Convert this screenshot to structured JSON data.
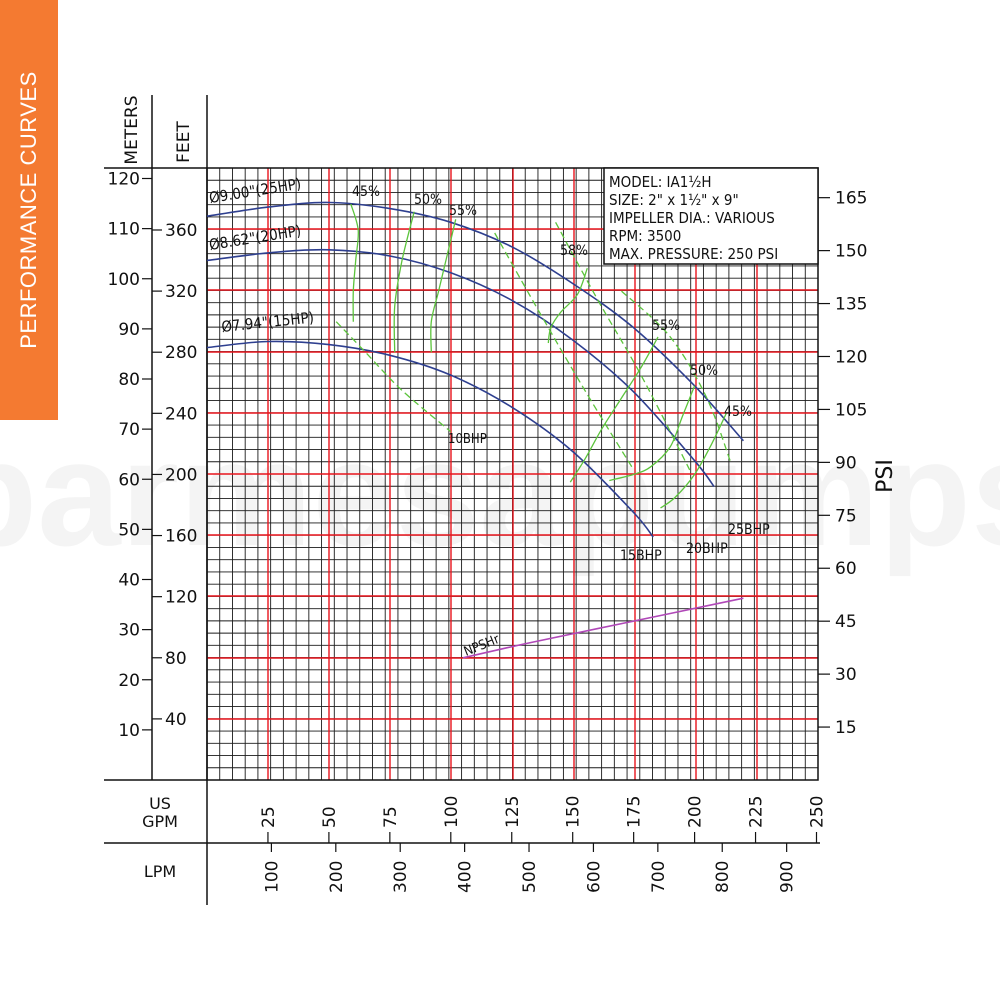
{
  "side_tab": {
    "label": "PERFORMANCE CURVES",
    "color": "#f47a31"
  },
  "colors": {
    "grid_major": "#e8141c",
    "grid_minor": "#1a1a1a",
    "head_curve": "#2e3f8f",
    "efficiency": "#5cc43c",
    "bhp": "#5cc43c",
    "npsh": "#b048b8"
  },
  "axes": {
    "meters_label": "METERS",
    "feet_label": "FEET",
    "psi_label": "PSI",
    "gpm_label_1": "US",
    "gpm_label_2": "GPM",
    "lpm_label": "LPM",
    "meters_ticks": [
      "10",
      "20",
      "30",
      "40",
      "50",
      "60",
      "70",
      "80",
      "90",
      "100",
      "110",
      "120"
    ],
    "feet_ticks": [
      "40",
      "80",
      "120",
      "160",
      "200",
      "240",
      "280",
      "320",
      "360"
    ],
    "psi_ticks": [
      "15",
      "30",
      "45",
      "60",
      "75",
      "90",
      "105",
      "120",
      "135",
      "150",
      "165"
    ],
    "gpm_ticks": [
      "25",
      "50",
      "75",
      "100",
      "125",
      "150",
      "175",
      "200",
      "225",
      "250"
    ],
    "lpm_ticks": [
      "100",
      "200",
      "300",
      "400",
      "500",
      "600",
      "700",
      "800",
      "900"
    ],
    "x_range_gpm": [
      0,
      250
    ],
    "y_range_meters": [
      0,
      120
    ]
  },
  "info_box": {
    "lines": [
      "MODEL: IA1½H",
      "SIZE: 2\" x 1½\" x 9\"",
      "IMPELLER DIA.: VARIOUS",
      "RPM: 3500",
      "MAX. PRESSURE: 250 PSI"
    ]
  },
  "watermark": "barmesapumps",
  "chart_data": {
    "type": "line",
    "xlabel": "US GPM",
    "ylabel": "FEET",
    "xlim": [
      0,
      250
    ],
    "ylim": [
      0,
      394
    ],
    "series": [
      {
        "name": "Ø9.00\"(25HP)",
        "kind": "head",
        "x": [
          0,
          25,
          50,
          75,
          100,
          125,
          150,
          175,
          200,
          220
        ],
        "y": [
          369,
          375,
          378,
          374,
          365,
          349,
          325,
          296,
          258,
          222
        ]
      },
      {
        "name": "Ø8.62\"(20HP)",
        "kind": "head",
        "x": [
          0,
          25,
          50,
          75,
          100,
          125,
          150,
          175,
          200,
          208
        ],
        "y": [
          340,
          345,
          347,
          343,
          332,
          314,
          288,
          254,
          209,
          192
        ]
      },
      {
        "name": "Ø7.94\"(15HP)",
        "kind": "head",
        "x": [
          0,
          25,
          50,
          75,
          100,
          125,
          150,
          175,
          183
        ],
        "y": [
          283,
          287,
          285,
          278,
          265,
          244,
          215,
          175,
          159
        ]
      },
      {
        "name": "45%",
        "kind": "efficiency",
        "x": [
          59,
          62,
          61,
          60,
          60
        ],
        "y": [
          377,
          360,
          340,
          320,
          300
        ]
      },
      {
        "name": "50%",
        "kind": "efficiency",
        "x": [
          85,
          80,
          77,
          77
        ],
        "y": [
          372,
          340,
          310,
          280
        ]
      },
      {
        "name": "55%",
        "kind": "efficiency",
        "x": [
          102,
          98,
          95,
          92,
          92
        ],
        "y": [
          367,
          340,
          320,
          300,
          280
        ]
      },
      {
        "name": "58%",
        "kind": "efficiency",
        "x": [
          156,
          152,
          145,
          141,
          140
        ],
        "y": [
          335,
          318,
          306,
          296,
          286
        ]
      },
      {
        "name": "55%",
        "kind": "efficiency",
        "x": [
          185,
          178,
          170,
          162,
          155,
          149
        ],
        "y": [
          290,
          270,
          250,
          230,
          210,
          195
        ]
      },
      {
        "name": "50%",
        "kind": "efficiency",
        "x": [
          200,
          195,
          190,
          182,
          175,
          165
        ],
        "y": [
          258,
          238,
          218,
          205,
          200,
          196
        ]
      },
      {
        "name": "45%",
        "kind": "efficiency",
        "x": [
          213,
          207,
          200,
          192,
          186
        ],
        "y": [
          240,
          220,
          200,
          185,
          178
        ]
      },
      {
        "name": "10BHP",
        "kind": "bhp",
        "x": [
          53,
          65,
          80,
          100
        ],
        "y": [
          300,
          280,
          255,
          228
        ]
      },
      {
        "name": "15BHP",
        "kind": "bhp",
        "x": [
          118,
          135,
          155,
          175
        ],
        "y": [
          358,
          310,
          255,
          203
        ]
      },
      {
        "name": "20BHP",
        "kind": "bhp",
        "x": [
          143,
          160,
          178,
          198
        ],
        "y": [
          365,
          315,
          265,
          203
        ]
      },
      {
        "name": "25BHP",
        "kind": "bhp",
        "x": [
          170,
          190,
          205,
          215
        ],
        "y": [
          320,
          290,
          250,
          207
        ]
      },
      {
        "name": "NPSHr",
        "kind": "npsh",
        "x": [
          105,
          130,
          160,
          190,
          220
        ],
        "y": [
          80,
          89,
          99,
          109,
          119
        ]
      }
    ]
  }
}
